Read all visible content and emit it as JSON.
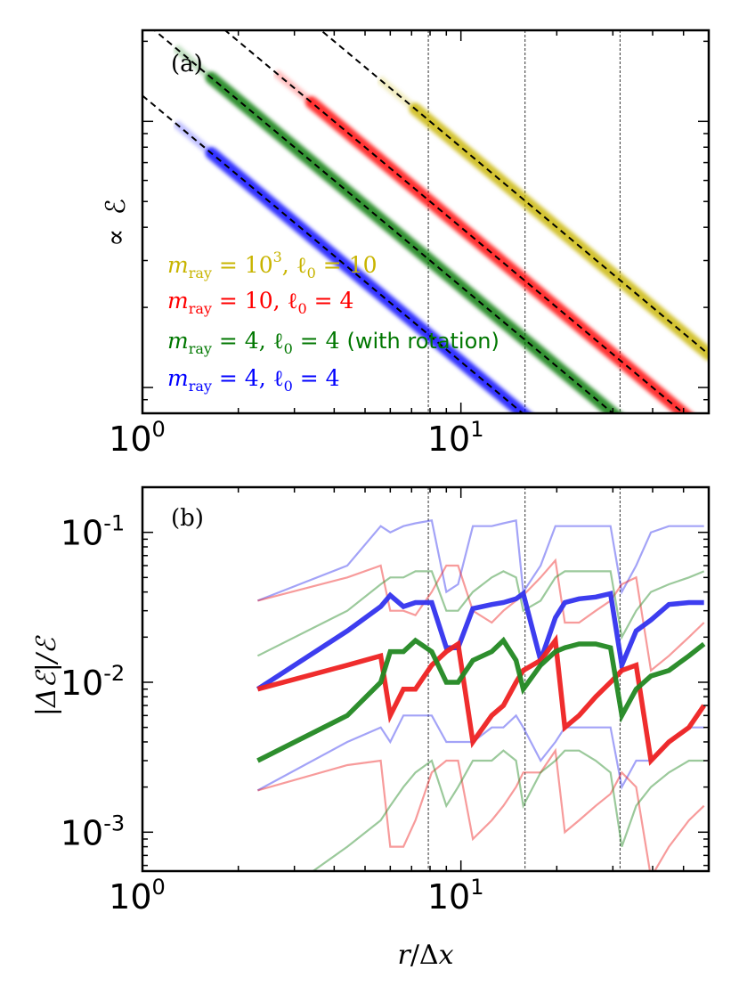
{
  "chart_data": [
    {
      "panel": "(a)",
      "type": "line",
      "xscale": "log",
      "yscale": "log",
      "xlim": [
        1,
        60
      ],
      "ylim": [
        0.8,
        22
      ],
      "ylabel": "∝ ℰ",
      "ylabel_prefix": "∝",
      "ylabel_symbol": "ℰ",
      "x_ticks": [
        {
          "value": 1,
          "base": "10",
          "exp": "0"
        },
        {
          "value": 10,
          "base": "10",
          "exp": "1"
        }
      ],
      "vlines": [
        7.9,
        15.9,
        31.6
      ],
      "legend_position": "lower-left",
      "series": [
        {
          "name": "m_ray = 10^3, ℓ0 = 10",
          "color": "#c8b400",
          "x_range": [
            7.2,
            60
          ],
          "y_at_x1": 80,
          "slope": -1.0,
          "width_factor": 1.08
        },
        {
          "name": "m_ray = 10, ℓ0 = 4",
          "color": "#ff0000",
          "x_range": [
            3.4,
            60
          ],
          "y_at_x1": 40,
          "slope": -1.0,
          "width_factor": 1.1
        },
        {
          "name": "m_ray = 4, ℓ0 = 4 (with rotation)",
          "color": "#007700",
          "x_range": [
            1.65,
            60
          ],
          "y_at_x1": 24,
          "slope": -1.0,
          "width_factor": 1.08
        },
        {
          "name": "m_ray = 4, ℓ0 = 4",
          "color": "#0000ff",
          "x_range": [
            1.65,
            60
          ],
          "y_at_x1": 12.5,
          "slope": -1.0,
          "width_factor": 1.12
        }
      ],
      "legend": [
        {
          "color": "#c8b400",
          "parts": [
            "m",
            "ray",
            " = 10",
            "3",
            ",  ℓ",
            "0",
            " = 10",
            ""
          ]
        },
        {
          "color": "#ff0000",
          "parts": [
            "m",
            "ray",
            " = 10,  ℓ",
            "",
            "",
            "0",
            " = 4",
            ""
          ]
        },
        {
          "color": "#007700",
          "parts": [
            "m",
            "ray",
            " = 4,  ℓ",
            "",
            "",
            "0",
            " = 4 ",
            "(with rotation)"
          ]
        },
        {
          "color": "#0000ff",
          "parts": [
            "m",
            "ray",
            " = 4,  ℓ",
            "",
            "",
            "0",
            " = 4",
            ""
          ]
        }
      ]
    },
    {
      "panel": "(b)",
      "type": "line",
      "xscale": "log",
      "yscale": "log",
      "xlim": [
        1,
        60
      ],
      "ylim": [
        0.00055,
        0.2
      ],
      "xlabel": "r/Δx",
      "xlabel_r": "r",
      "xlabel_slash": "/Δ",
      "xlabel_x": "x",
      "ylabel": "|Δℰ|/ℰ",
      "ylabel_text": "|Δℰ|/ℰ",
      "x_ticks": [
        {
          "value": 1,
          "base": "10",
          "exp": "0"
        },
        {
          "value": 10,
          "base": "10",
          "exp": "1"
        }
      ],
      "y_ticks": [
        {
          "value": 0.001,
          "base": "10",
          "exp": "-3"
        },
        {
          "value": 0.01,
          "base": "10",
          "exp": "-2"
        },
        {
          "value": 0.1,
          "base": "10",
          "exp": "-1"
        }
      ],
      "vlines": [
        7.9,
        15.9,
        31.6
      ],
      "x": [
        2.3,
        4.4,
        5.6,
        6.0,
        6.6,
        7.2,
        8.1,
        9.0,
        9.8,
        10.9,
        12.5,
        13.6,
        14.9,
        15.7,
        17.8,
        19.8,
        21.2,
        23.5,
        26.5,
        29.5,
        32.0,
        35.5,
        39.5,
        45.0,
        52.0,
        58.0
      ],
      "series": [
        {
          "name": "blue mean",
          "color": "#3333ee",
          "alpha": 0.95,
          "width": 5.5,
          "values": [
            0.009,
            0.022,
            0.032,
            0.038,
            0.032,
            0.034,
            0.034,
            0.017,
            0.017,
            0.031,
            0.033,
            0.034,
            0.036,
            0.039,
            0.014,
            0.027,
            0.034,
            0.036,
            0.037,
            0.039,
            0.013,
            0.022,
            0.026,
            0.033,
            0.034,
            0.034
          ]
        },
        {
          "name": "red mean",
          "color": "#ee2222",
          "alpha": 0.95,
          "width": 5.5,
          "values": [
            0.009,
            0.013,
            0.015,
            0.006,
            0.009,
            0.009,
            0.013,
            0.016,
            0.018,
            0.004,
            0.006,
            0.007,
            0.01,
            0.012,
            0.014,
            0.019,
            0.005,
            0.006,
            0.008,
            0.01,
            0.012,
            0.013,
            0.003,
            0.004,
            0.005,
            0.007
          ]
        },
        {
          "name": "green mean",
          "color": "#228822",
          "alpha": 0.95,
          "width": 5.5,
          "values": [
            0.003,
            0.006,
            0.01,
            0.016,
            0.016,
            0.019,
            0.016,
            0.01,
            0.01,
            0.014,
            0.016,
            0.019,
            0.014,
            0.009,
            0.013,
            0.016,
            0.017,
            0.018,
            0.018,
            0.017,
            0.006,
            0.009,
            0.011,
            0.012,
            0.015,
            0.018
          ]
        },
        {
          "name": "blue upper",
          "color": "#3333ee",
          "alpha": 0.45,
          "width": 2.2,
          "values": [
            0.035,
            0.06,
            0.11,
            0.1,
            0.11,
            0.115,
            0.12,
            0.04,
            0.045,
            0.11,
            0.11,
            0.115,
            0.12,
            0.04,
            0.06,
            0.11,
            0.11,
            0.11,
            0.11,
            0.11,
            0.04,
            0.06,
            0.1,
            0.11,
            0.11,
            0.11
          ]
        },
        {
          "name": "blue lower",
          "color": "#3333ee",
          "alpha": 0.45,
          "width": 2.2,
          "values": [
            0.0019,
            0.004,
            0.005,
            0.004,
            0.006,
            0.006,
            0.006,
            0.004,
            0.004,
            0.004,
            0.005,
            0.005,
            0.006,
            0.005,
            0.003,
            0.004,
            0.005,
            0.005,
            0.005,
            0.005,
            0.002,
            0.003,
            0.003,
            0.004,
            0.005,
            0.005
          ]
        },
        {
          "name": "red upper",
          "color": "#ee2222",
          "alpha": 0.45,
          "width": 2.2,
          "values": [
            0.035,
            0.05,
            0.06,
            0.03,
            0.03,
            0.028,
            0.04,
            0.06,
            0.06,
            0.03,
            0.025,
            0.03,
            0.035,
            0.038,
            0.05,
            0.065,
            0.025,
            0.025,
            0.03,
            0.035,
            0.045,
            0.05,
            0.012,
            0.015,
            0.02,
            0.025
          ]
        },
        {
          "name": "red lower",
          "color": "#ee2222",
          "alpha": 0.45,
          "width": 2.2,
          "values": [
            0.0019,
            0.0028,
            0.003,
            0.0008,
            0.0008,
            0.0012,
            0.0025,
            0.003,
            0.003,
            0.0009,
            0.0012,
            0.0015,
            0.002,
            0.0025,
            0.0025,
            0.0035,
            0.001,
            0.0012,
            0.0015,
            0.0018,
            0.0025,
            0.002,
            0.0005,
            0.0008,
            0.0012,
            0.0015
          ]
        },
        {
          "name": "green upper",
          "color": "#228822",
          "alpha": 0.45,
          "width": 2.2,
          "values": [
            0.015,
            0.03,
            0.045,
            0.05,
            0.05,
            0.055,
            0.055,
            0.03,
            0.03,
            0.04,
            0.05,
            0.055,
            0.05,
            0.03,
            0.035,
            0.05,
            0.055,
            0.055,
            0.055,
            0.055,
            0.02,
            0.03,
            0.04,
            0.045,
            0.05,
            0.055
          ]
        },
        {
          "name": "green lower",
          "color": "#228822",
          "alpha": 0.45,
          "width": 2.2,
          "values": [
            0.0003,
            0.0008,
            0.0012,
            0.0015,
            0.002,
            0.0025,
            0.003,
            0.0015,
            0.002,
            0.003,
            0.003,
            0.0035,
            0.003,
            0.0015,
            0.0025,
            0.003,
            0.0035,
            0.0035,
            0.003,
            0.0025,
            0.0008,
            0.0015,
            0.002,
            0.0025,
            0.003,
            0.003
          ]
        }
      ]
    }
  ]
}
